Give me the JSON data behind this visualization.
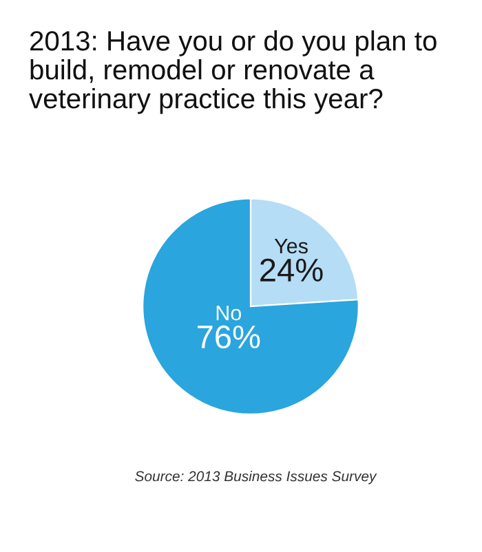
{
  "chart_data": {
    "type": "pie",
    "title": "2013: Have you or do you plan to build, remodel or renovate a veterinary practice this year?",
    "categories": [
      "Yes",
      "No"
    ],
    "values": [
      24,
      76
    ],
    "value_labels": [
      "24%",
      "76%"
    ],
    "colors": [
      "#b5ddf5",
      "#2aa5dd"
    ],
    "legend": false,
    "annotations": [
      "Source: 2013 Business Issues Survey"
    ]
  }
}
